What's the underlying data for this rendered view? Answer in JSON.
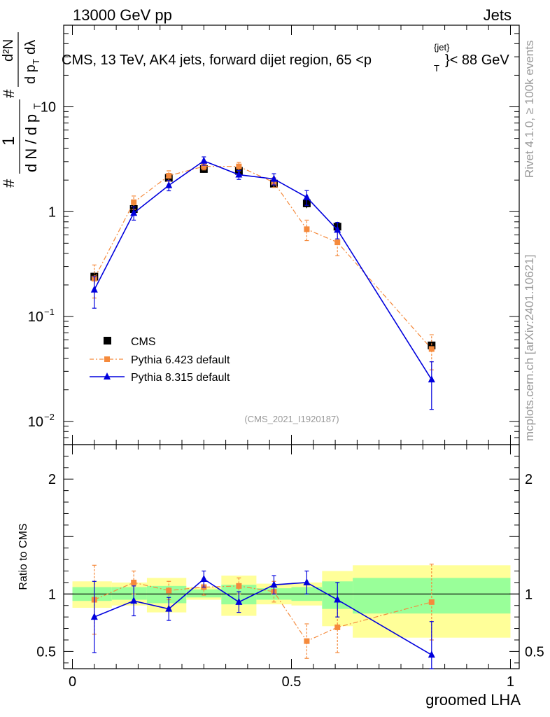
{
  "header": {
    "left": "13000 GeV pp",
    "right": "Jets"
  },
  "side": {
    "rivet": "Rivet 4.1.0, ≥ 100k events",
    "mcplots": "mcplots.cern.ch [arXiv:2401.10621]"
  },
  "legend": {
    "cms": "CMS",
    "py6": "Pythia 6.423 default",
    "py8": "Pythia 8.315 default"
  },
  "colors": {
    "cms": "#000000",
    "py6": "#f58a3c",
    "py8": "#0000dd",
    "band_outer": "#ffff99",
    "band_inner": "#99ff99"
  },
  "chart_data": [
    {
      "type": "line",
      "panel": "main",
      "title_parts": {
        "prefix": "CMS, 13 TeV, AK4 jets, forward dijet region, 65 <p",
        "sup": "{jet}",
        "sub": "T",
        "suffix": "}< 88 GeV"
      },
      "watermark": "(CMS_2021_I1920187)",
      "ylabel": {
        "frac1_num": "#",
        "frac1_num2": "1",
        "frac1_den": "d N / d p",
        "frac1_den_sub": "T",
        "frac2_num": "d²N",
        "frac2_den": "d p",
        "frac2_den_sub": "T",
        "frac2_den_end": "dλ",
        "hash2": "#"
      },
      "yscale": "log",
      "ylim": [
        0.006,
        60
      ],
      "ytick_labels": [
        {
          "value": 0.01,
          "base": "10",
          "exp": "−2"
        },
        {
          "value": 0.1,
          "base": "10",
          "exp": "−1"
        },
        {
          "value": 1,
          "base": "1",
          "exp": ""
        },
        {
          "value": 10,
          "base": "10",
          "exp": ""
        }
      ],
      "xlim": [
        -0.02,
        1.02
      ],
      "x": [
        0.05,
        0.14,
        0.22,
        0.3,
        0.38,
        0.46,
        0.535,
        0.605,
        0.82
      ],
      "series": [
        {
          "name": "CMS",
          "values": [
            0.24,
            1.06,
            2.1,
            2.55,
            2.45,
            1.85,
            1.2,
            0.72,
            0.053
          ],
          "err": [
            0.03,
            0.12,
            0.2,
            0.2,
            0.2,
            0.15,
            0.12,
            0.08,
            0.006
          ]
        },
        {
          "name": "Pythia 6.423 default",
          "values": [
            0.23,
            1.23,
            2.2,
            2.7,
            2.7,
            1.9,
            0.68,
            0.51,
            0.049
          ],
          "err": [
            0.08,
            0.18,
            0.25,
            0.2,
            0.25,
            0.2,
            0.15,
            0.13,
            0.018
          ]
        },
        {
          "name": "Pythia 8.315 default",
          "values": [
            0.18,
            0.97,
            1.78,
            3.05,
            2.25,
            2.05,
            1.37,
            0.67,
            0.025
          ],
          "err": [
            0.06,
            0.14,
            0.2,
            0.28,
            0.22,
            0.25,
            0.22,
            0.12,
            0.012
          ]
        }
      ]
    },
    {
      "type": "line",
      "panel": "ratio",
      "ylabel": "Ratio to CMS",
      "ylim": [
        0.35,
        2.3
      ],
      "ytick_labels": [
        {
          "value": 0.5,
          "label": "0.5"
        },
        {
          "value": 1,
          "label": "1"
        },
        {
          "value": 2,
          "label": "2"
        }
      ],
      "xlim": [
        -0.02,
        1.02
      ],
      "xlabel": "groomed LHA",
      "xtick_labels": [
        {
          "value": 0,
          "label": "0"
        },
        {
          "value": 0.5,
          "label": "0.5"
        },
        {
          "value": 1,
          "label": "1"
        }
      ],
      "bins": [
        {
          "lo": 0.0,
          "hi": 0.09,
          "y_lo": 0.88,
          "y_hi": 1.11,
          "g_lo": 0.94,
          "g_hi": 1.06
        },
        {
          "lo": 0.09,
          "hi": 0.17,
          "y_lo": 0.9,
          "y_hi": 1.1,
          "g_lo": 0.95,
          "g_hi": 1.06
        },
        {
          "lo": 0.17,
          "hi": 0.26,
          "y_lo": 0.84,
          "y_hi": 1.14,
          "g_lo": 0.92,
          "g_hi": 1.07
        },
        {
          "lo": 0.26,
          "hi": 0.34,
          "y_lo": 0.95,
          "y_hi": 1.06,
          "g_lo": 0.97,
          "g_hi": 1.04
        },
        {
          "lo": 0.34,
          "hi": 0.42,
          "y_lo": 0.81,
          "y_hi": 1.16,
          "g_lo": 0.91,
          "g_hi": 1.08
        },
        {
          "lo": 0.42,
          "hi": 0.5,
          "y_lo": 0.91,
          "y_hi": 1.09,
          "g_lo": 0.95,
          "g_hi": 1.05
        },
        {
          "lo": 0.5,
          "hi": 0.57,
          "y_lo": 0.9,
          "y_hi": 1.1,
          "g_lo": 0.94,
          "g_hi": 1.06
        },
        {
          "lo": 0.57,
          "hi": 0.64,
          "y_lo": 0.72,
          "y_hi": 1.2,
          "g_lo": 0.87,
          "g_hi": 1.11
        },
        {
          "lo": 0.64,
          "hi": 1.0,
          "y_lo": 0.62,
          "y_hi": 1.25,
          "g_lo": 0.83,
          "g_hi": 1.14
        }
      ],
      "x": [
        0.05,
        0.14,
        0.22,
        0.3,
        0.38,
        0.46,
        0.535,
        0.605,
        0.82
      ],
      "series": [
        {
          "name": "Pythia 6.423 default",
          "values": [
            0.95,
            1.1,
            1.03,
            1.06,
            1.07,
            1.02,
            0.59,
            0.71,
            0.93
          ],
          "err": [
            0.3,
            0.1,
            0.08,
            0.07,
            0.07,
            0.09,
            0.15,
            0.22,
            0.33
          ]
        },
        {
          "name": "Pythia 8.315 default",
          "values": [
            0.8,
            0.94,
            0.87,
            1.13,
            0.93,
            1.08,
            1.1,
            0.95,
            0.47
          ],
          "err": [
            0.31,
            0.13,
            0.1,
            0.07,
            0.09,
            0.08,
            0.1,
            0.15,
            0.29
          ]
        }
      ]
    }
  ]
}
